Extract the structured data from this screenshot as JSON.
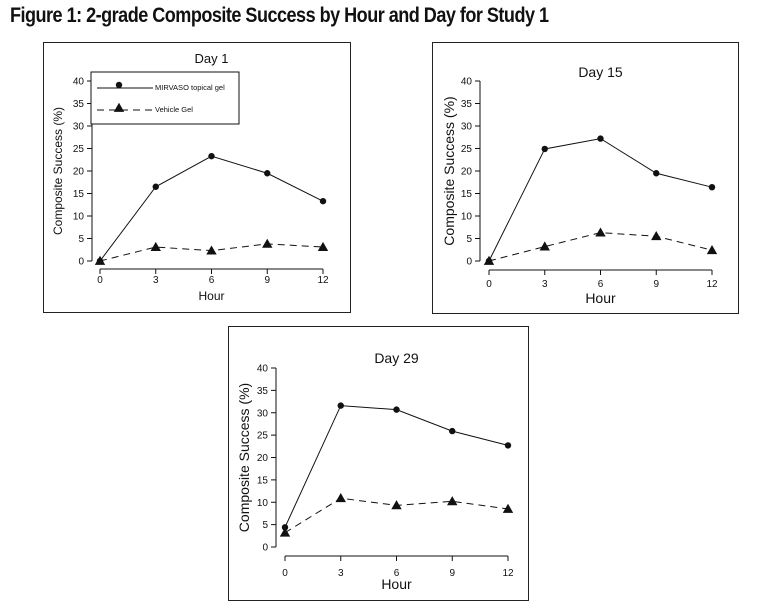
{
  "figure": {
    "title": "Figure 1: 2-grade Composite Success by Hour and Day for Study 1"
  },
  "colors": {
    "line": "#111111",
    "frame": "#222222",
    "background": "#ffffff"
  },
  "chart_data": [
    {
      "type": "line",
      "title": "Day 1",
      "xlabel": "Hour",
      "ylabel": "Composite Success (%)",
      "x": [
        0,
        3,
        6,
        9,
        12
      ],
      "xlim": [
        0,
        12
      ],
      "ylim": [
        0,
        40
      ],
      "xticks": [
        "0",
        "3",
        "6",
        "9",
        "12"
      ],
      "yticks": [
        "0",
        "5",
        "10",
        "15",
        "20",
        "25",
        "30",
        "35",
        "40"
      ],
      "legend": {
        "position": "top-left",
        "entries": [
          "MIRVASO topical gel",
          "Vehicle  Gel"
        ]
      },
      "series": [
        {
          "name": "MIRVASO topical gel",
          "marker": "circle",
          "line": "solid",
          "values": [
            0,
            16.5,
            23.3,
            19.5,
            13.3
          ]
        },
        {
          "name": "Vehicle  Gel",
          "marker": "triangle",
          "line": "dashed",
          "values": [
            0,
            3.1,
            2.3,
            3.8,
            3.1
          ]
        }
      ]
    },
    {
      "type": "line",
      "title": "Day 15",
      "xlabel": "Hour",
      "ylabel": "Composite Success (%)",
      "x": [
        0,
        3,
        6,
        9,
        12
      ],
      "xlim": [
        0,
        12
      ],
      "ylim": [
        0,
        40
      ],
      "xticks": [
        "0",
        "3",
        "6",
        "9",
        "12"
      ],
      "yticks": [
        "0",
        "5",
        "10",
        "15",
        "20",
        "25",
        "30",
        "35",
        "40"
      ],
      "series": [
        {
          "name": "MIRVASO topical gel",
          "marker": "circle",
          "line": "solid",
          "values": [
            0,
            24.9,
            27.2,
            19.5,
            16.4
          ]
        },
        {
          "name": "Vehicle  Gel",
          "marker": "triangle",
          "line": "dashed",
          "values": [
            0,
            3.2,
            6.3,
            5.5,
            2.4
          ]
        }
      ]
    },
    {
      "type": "line",
      "title": "Day 29",
      "xlabel": "Hour",
      "ylabel": "Composite Success (%)",
      "x": [
        0,
        3,
        6,
        9,
        12
      ],
      "xlim": [
        0,
        12
      ],
      "ylim": [
        0,
        40
      ],
      "xticks": [
        "0",
        "3",
        "6",
        "9",
        "12"
      ],
      "yticks": [
        "0",
        "5",
        "10",
        "15",
        "20",
        "25",
        "30",
        "35",
        "40"
      ],
      "series": [
        {
          "name": "MIRVASO topical gel",
          "marker": "circle",
          "line": "solid",
          "values": [
            4.4,
            31.6,
            30.7,
            25.9,
            22.7
          ]
        },
        {
          "name": "Vehicle  Gel",
          "marker": "triangle",
          "line": "dashed",
          "values": [
            3.2,
            10.9,
            9.3,
            10.2,
            8.5
          ]
        }
      ]
    }
  ]
}
